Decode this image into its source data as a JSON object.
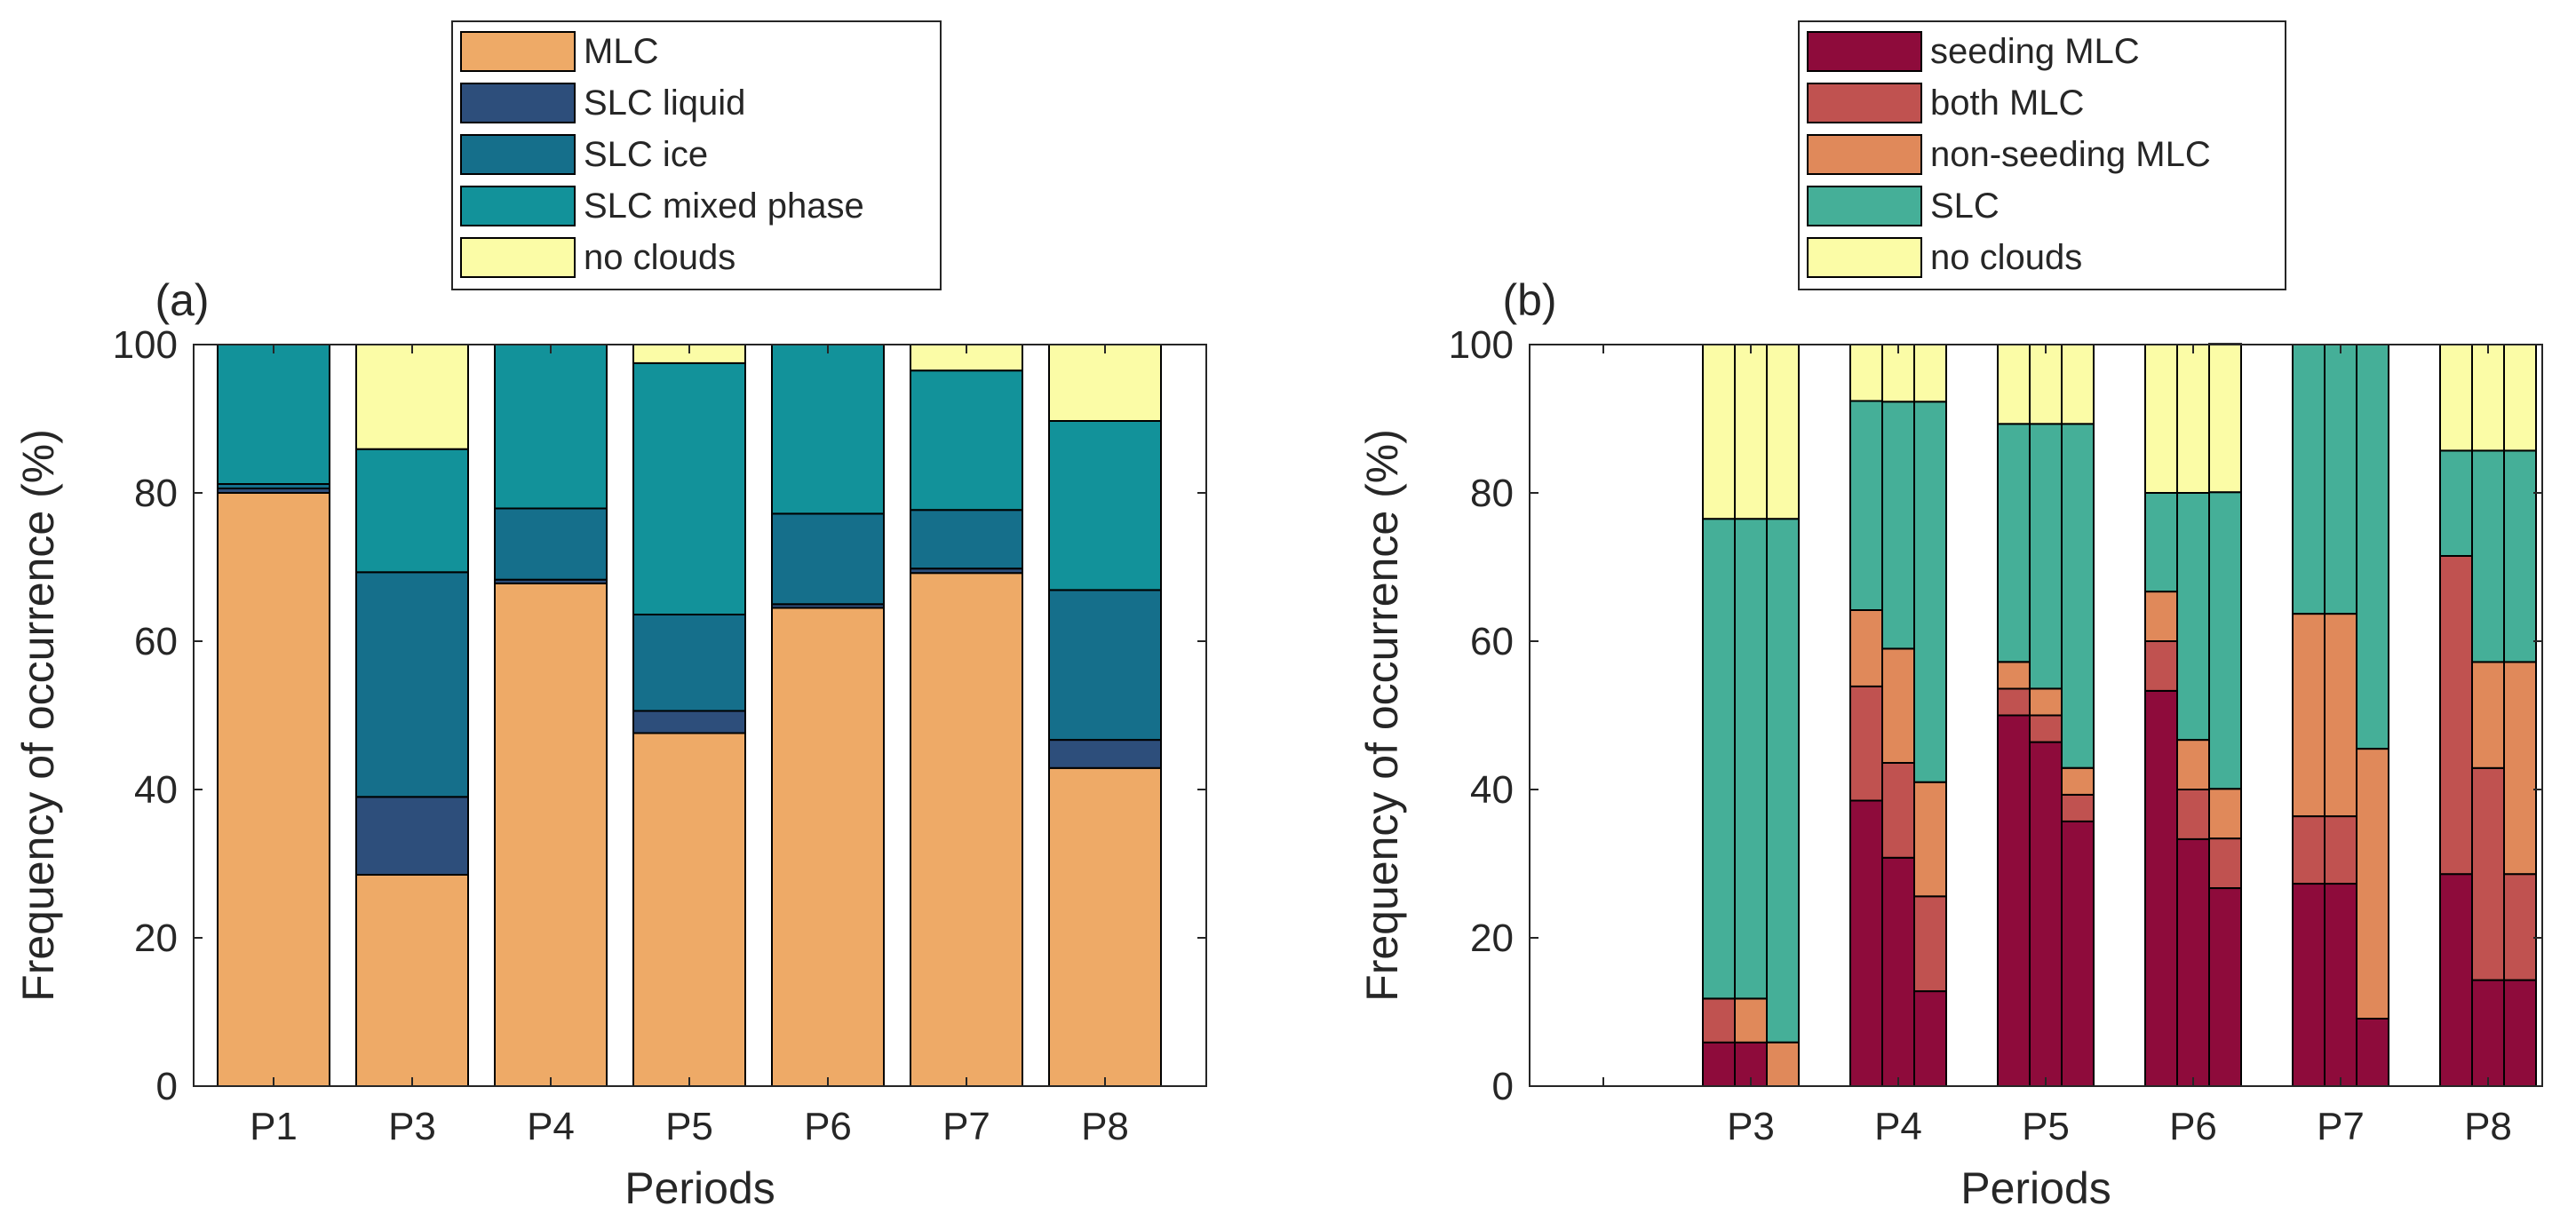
{
  "chart_data": [
    {
      "panel_label": "(a)",
      "type": "bar",
      "stacked": true,
      "xlabel": "Periods",
      "ylabel": "Frequency of occurrence (%)",
      "ylim": [
        0,
        100
      ],
      "yticks": [
        0,
        20,
        40,
        60,
        80,
        100
      ],
      "categories": [
        "P1",
        "P3",
        "P4",
        "P5",
        "P6",
        "P7",
        "P8"
      ],
      "legend_position": "top",
      "series": [
        {
          "name": "MLC",
          "color": "#EEAA67",
          "values": [
            80.0,
            28.5,
            67.8,
            47.6,
            64.5,
            69.2,
            42.9
          ]
        },
        {
          "name": "SLC liquid",
          "color": "#2D4E7B",
          "values": [
            0.6,
            10.5,
            0.5,
            3.0,
            0.5,
            0.6,
            3.8
          ]
        },
        {
          "name": "SLC ice",
          "color": "#156F8B",
          "values": [
            0.6,
            30.3,
            9.6,
            13.0,
            12.2,
            7.9,
            20.2
          ]
        },
        {
          "name": "SLC mixed phase",
          "color": "#12929A",
          "values": [
            18.8,
            16.6,
            22.1,
            33.9,
            22.8,
            18.8,
            22.8
          ]
        },
        {
          "name": "no clouds",
          "color": "#FBFCA6",
          "values": [
            0.0,
            14.1,
            0.0,
            2.5,
            0.0,
            3.5,
            10.3
          ]
        }
      ]
    },
    {
      "panel_label": "(b)",
      "type": "bar",
      "stacked": true,
      "grouped": true,
      "xlabel": "Periods",
      "ylabel": "Frequency of occurrence (%)",
      "ylim": [
        0,
        100
      ],
      "yticks": [
        0,
        20,
        40,
        60,
        80,
        100
      ],
      "categories": [
        "",
        "P3",
        "P4",
        "P5",
        "P6",
        "P7",
        "P8"
      ],
      "bars_per_group": 3,
      "legend_position": "top",
      "series": [
        {
          "name": "seeding MLC",
          "color": "#8E0B3B",
          "values": [
            [
              0,
              0,
              0
            ],
            [
              5.9,
              5.9,
              0
            ],
            [
              38.5,
              30.8,
              12.8
            ],
            [
              50.0,
              46.4,
              35.7
            ],
            [
              53.3,
              33.3,
              26.7
            ],
            [
              27.3,
              27.3,
              9.1
            ],
            [
              28.6,
              14.3,
              14.3
            ]
          ]
        },
        {
          "name": "both MLC",
          "color": "#C05250",
          "values": [
            [
              0,
              0,
              0
            ],
            [
              5.9,
              0,
              0
            ],
            [
              15.4,
              12.8,
              12.8
            ],
            [
              3.6,
              3.6,
              3.6
            ],
            [
              6.7,
              6.7,
              6.7
            ],
            [
              9.1,
              9.1,
              0
            ],
            [
              42.9,
              28.6,
              14.3
            ]
          ]
        },
        {
          "name": "non-seeding MLC",
          "color": "#E0895A",
          "values": [
            [
              0,
              0,
              0
            ],
            [
              0,
              5.9,
              5.9
            ],
            [
              10.3,
              15.4,
              15.4
            ],
            [
              3.6,
              3.6,
              3.6
            ],
            [
              6.7,
              6.7,
              6.7
            ],
            [
              27.3,
              27.3,
              36.4
            ],
            [
              0,
              14.3,
              28.6
            ]
          ]
        },
        {
          "name": "SLC",
          "color": "#45AF98",
          "values": [
            [
              0,
              0,
              0
            ],
            [
              64.7,
              64.7,
              70.6
            ],
            [
              28.2,
              33.3,
              51.3
            ],
            [
              32.1,
              35.7,
              46.4
            ],
            [
              13.3,
              33.3,
              40.0
            ],
            [
              36.3,
              36.3,
              54.5
            ],
            [
              14.2,
              28.5,
              28.5
            ]
          ]
        },
        {
          "name": "no clouds",
          "color": "#FBFCA6",
          "values": [
            [
              0,
              0,
              0
            ],
            [
              23.5,
              23.5,
              23.5
            ],
            [
              7.6,
              7.7,
              7.7
            ],
            [
              10.7,
              10.7,
              10.7
            ],
            [
              20.0,
              20.0,
              20.0
            ],
            [
              0,
              0,
              0
            ],
            [
              14.3,
              14.3,
              14.3
            ]
          ]
        }
      ]
    }
  ]
}
